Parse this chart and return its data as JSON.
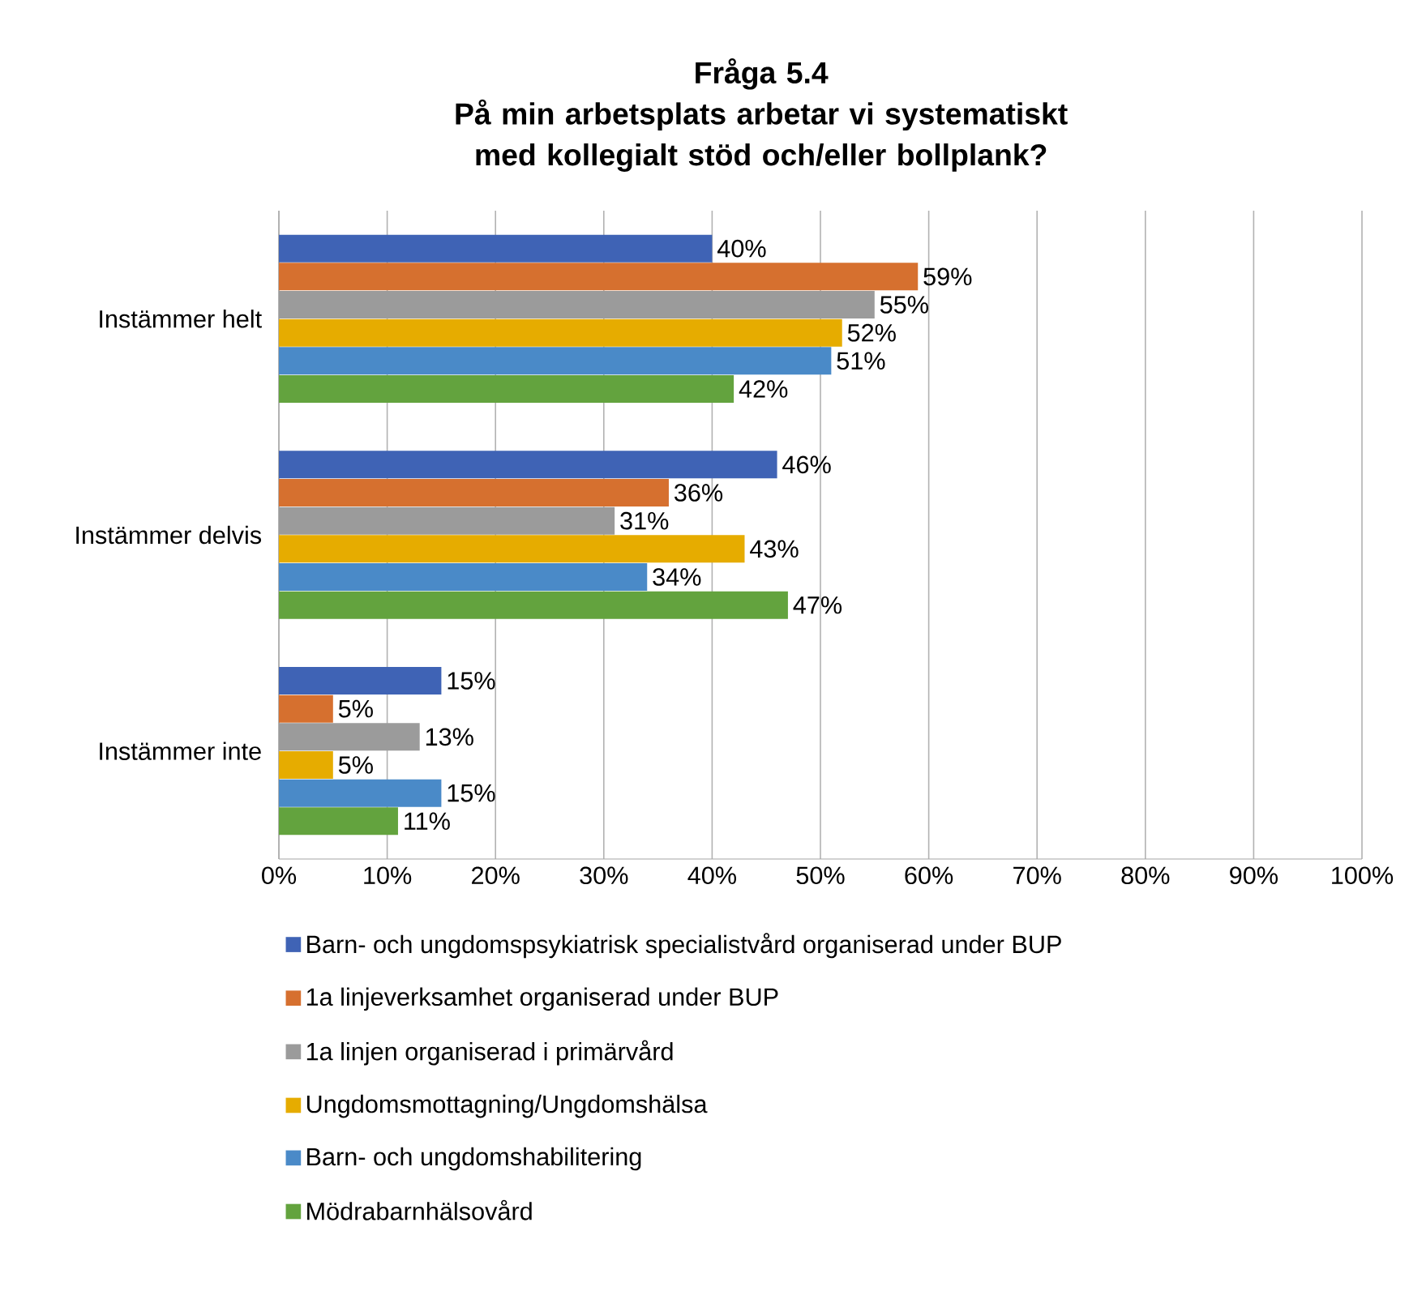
{
  "chart_data": {
    "type": "bar",
    "orientation": "horizontal",
    "title": "Fråga 5.4",
    "subtitle": "På min arbetsplats arbetar vi systematiskt med kollegialt stöd och/eller bollplank?",
    "categories": [
      "Instämmer helt",
      "Instämmer delvis",
      "Instämmer inte"
    ],
    "series": [
      {
        "name": "Barn- och ungdomspsykiatrisk specialistvård organiserad under BUP",
        "color": "#3f63b5",
        "values": [
          40,
          46,
          15
        ],
        "value_labels": [
          "40%",
          "46%",
          "15%"
        ]
      },
      {
        "name": "1a linjeverksamhet organiserad under BUP",
        "color": "#d6702f",
        "values": [
          59,
          36,
          5
        ],
        "value_labels": [
          "59%",
          "36%",
          "5%"
        ]
      },
      {
        "name": "1a linjen organiserad i primärvård",
        "color": "#9b9b9b",
        "values": [
          55,
          31,
          13
        ],
        "value_labels": [
          "55%",
          "31%",
          "13%"
        ]
      },
      {
        "name": "Ungdomsmottagning/Ungdomshälsa",
        "color": "#e6ac00",
        "values": [
          52,
          43,
          5
        ],
        "value_labels": [
          "52%",
          "43%",
          "5%"
        ]
      },
      {
        "name": "Barn- och ungdomshabilitering",
        "color": "#4a8ac8",
        "values": [
          51,
          34,
          15
        ],
        "value_labels": [
          "51%",
          "34%",
          "15%"
        ]
      },
      {
        "name": "Mödrabarnhälsovård",
        "color": "#63a33e",
        "values": [
          42,
          47,
          11
        ],
        "value_labels": [
          "42%",
          "47%",
          "11%"
        ]
      }
    ],
    "xlim": [
      0,
      100
    ],
    "xticks": [
      {
        "value": 0,
        "label": "0%"
      },
      {
        "value": 10,
        "label": "10%"
      },
      {
        "value": 20,
        "label": "20%"
      },
      {
        "value": 30,
        "label": "30%"
      },
      {
        "value": 40,
        "label": "40%"
      },
      {
        "value": 50,
        "label": "50%"
      },
      {
        "value": 60,
        "label": "60%"
      },
      {
        "value": 70,
        "label": "70%"
      },
      {
        "value": 80,
        "label": "80%"
      },
      {
        "value": 90,
        "label": "90%"
      },
      {
        "value": 100,
        "label": "100%"
      }
    ],
    "grid": "x",
    "legend": "bottom"
  }
}
